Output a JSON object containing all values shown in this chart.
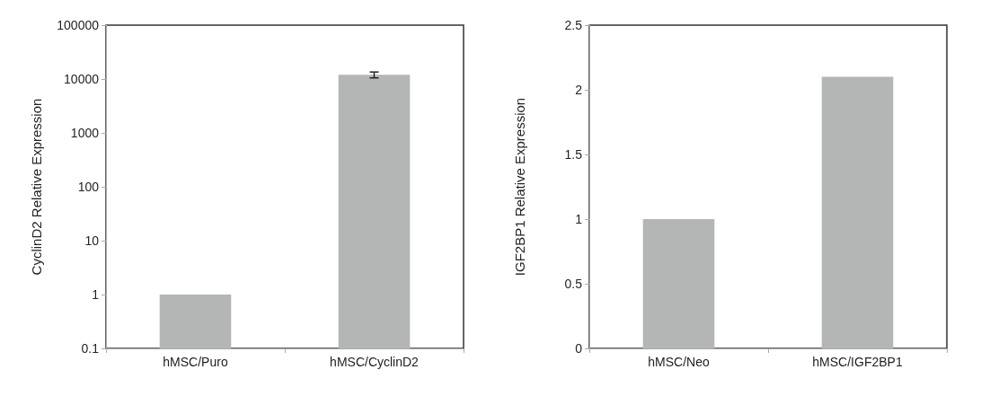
{
  "chart_data": [
    {
      "type": "bar",
      "ylabel": "CyclinD2 Relative Expression",
      "categories": [
        "hMSC/Puro",
        "hMSC/CyclinD2"
      ],
      "values": [
        1,
        12000
      ],
      "errors": [
        null,
        1500
      ],
      "color": "#b4b6b5",
      "log": true,
      "ylim": [
        0.1,
        100000
      ],
      "yticks": [
        0.1,
        1,
        10,
        100,
        1000,
        10000,
        100000
      ],
      "grid": false
    },
    {
      "type": "bar",
      "ylabel": "IGF2BP1 Relative Expression",
      "categories": [
        "hMSC/Neo",
        "hMSC/IGF2BP1"
      ],
      "values": [
        1,
        2.1
      ],
      "color": "#b4b6b5",
      "ylim": [
        0,
        2.5
      ],
      "yticks": [
        0,
        0.5,
        1,
        1.5,
        2,
        2.5
      ],
      "grid": false
    }
  ]
}
